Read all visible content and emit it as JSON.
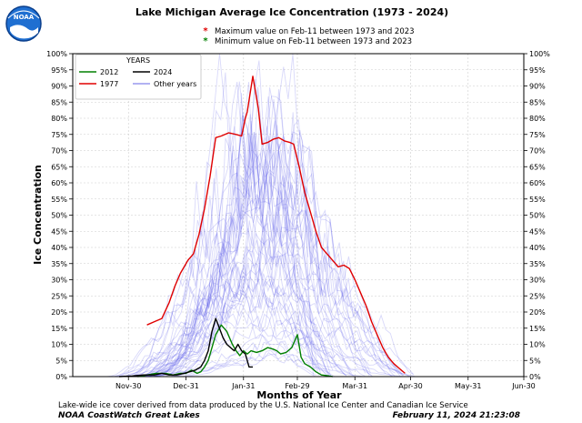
{
  "chart_data": {
    "type": "line",
    "title": "Lake Michigan Average Ice Concentration (1973 - 2024)",
    "subtitle_lines": [
      {
        "marker": "*",
        "color": "#e00000",
        "text": "Maximum  value on Feb-11 between 1973 and 2023"
      },
      {
        "marker": "*",
        "color": "#008000",
        "text": "Minimum  value on Feb-11 between 1973 and 2023"
      }
    ],
    "xlabel": "Months of Year",
    "ylabel": "Ice Concentration",
    "x_ticks": [
      "Nov-30",
      "Dec-31",
      "Jan-31",
      "Feb-29",
      "Mar-31",
      "Apr-30",
      "May-31",
      "Jun-30"
    ],
    "x_tick_days": [
      30,
      61,
      92,
      121,
      152,
      182,
      213,
      243
    ],
    "xlim": [
      0,
      243
    ],
    "ylim": [
      0,
      100
    ],
    "y_ticks": [
      "0%",
      "5%",
      "10%",
      "15%",
      "20%",
      "25%",
      "30%",
      "35%",
      "40%",
      "45%",
      "50%",
      "55%",
      "60%",
      "65%",
      "70%",
      "75%",
      "80%",
      "85%",
      "90%",
      "95%",
      "100%"
    ],
    "grid": true,
    "legend": {
      "title": "YEARS",
      "placement": "top-left",
      "entries": [
        {
          "label": "2012",
          "color": "#008000"
        },
        {
          "label": "2024",
          "color": "#000000"
        },
        {
          "label": "1977",
          "color": "#e00000"
        },
        {
          "label": "Other years",
          "color": "#9999ee"
        }
      ]
    },
    "series": [
      {
        "name": "1977",
        "color": "#e00000",
        "x": [
          40,
          44,
          48,
          52,
          55,
          58,
          62,
          65,
          68,
          71,
          74,
          77,
          80,
          84,
          88,
          91,
          93,
          94,
          97,
          100,
          102,
          105,
          108,
          111,
          114,
          117,
          119,
          122,
          125,
          128,
          131,
          134,
          137,
          140,
          143,
          146,
          149,
          152,
          155,
          158,
          161,
          164,
          167,
          170,
          173,
          176,
          179
        ],
        "y": [
          16,
          17,
          18,
          23,
          28,
          32,
          36,
          38,
          44,
          52,
          62,
          74,
          74.5,
          75.5,
          75,
          74.5,
          80,
          82,
          93,
          83,
          72,
          72.5,
          73.5,
          74,
          73,
          72.5,
          72,
          65,
          57,
          51,
          45,
          40,
          38,
          36,
          34,
          34.5,
          33.5,
          30,
          26,
          22,
          17,
          13,
          9,
          6,
          4,
          2.5,
          1
        ]
      },
      {
        "name": "2012",
        "color": "#008000",
        "x": [
          35,
          40,
          45,
          50,
          54,
          58,
          61,
          64,
          67,
          69,
          71,
          73,
          75,
          77,
          80,
          83,
          86,
          88,
          90,
          92,
          94,
          96,
          99,
          102,
          105,
          108,
          110,
          112,
          115,
          118,
          121,
          123,
          125,
          128,
          131,
          134,
          137,
          140
        ],
        "y": [
          0,
          0.5,
          1,
          1,
          0.5,
          1,
          1,
          2,
          1,
          1.5,
          3,
          5,
          9,
          13,
          16,
          14,
          10,
          8,
          6.5,
          8,
          7,
          8,
          7.5,
          8,
          9,
          8.5,
          8,
          7,
          7.5,
          9,
          13,
          6,
          4,
          3,
          1.5,
          0.5,
          0.3,
          0
        ]
      },
      {
        "name": "2024",
        "color": "#000000",
        "x": [
          25,
          32,
          38,
          44,
          48,
          52,
          56,
          60,
          63,
          66,
          69,
          71,
          73,
          75,
          77,
          79,
          81,
          83,
          85,
          87,
          89,
          91,
          93,
          95,
          97
        ],
        "y": [
          0,
          0.2,
          0.5,
          0.5,
          1,
          0.5,
          0.5,
          1,
          1.5,
          2,
          3,
          5,
          8,
          14,
          18,
          15,
          12,
          10,
          9,
          8,
          10,
          8,
          7,
          3,
          3
        ]
      }
    ]
  },
  "footer": {
    "note": "Lake-wide ice cover derived from data produced by the U.S. National Ice Center and Canadian Ice Service",
    "org": "NOAA CoastWatch Great Lakes",
    "date": "February 11, 2024 21:23:08"
  },
  "logo": {
    "text": "NOAA",
    "color": "#1a5fb4"
  }
}
